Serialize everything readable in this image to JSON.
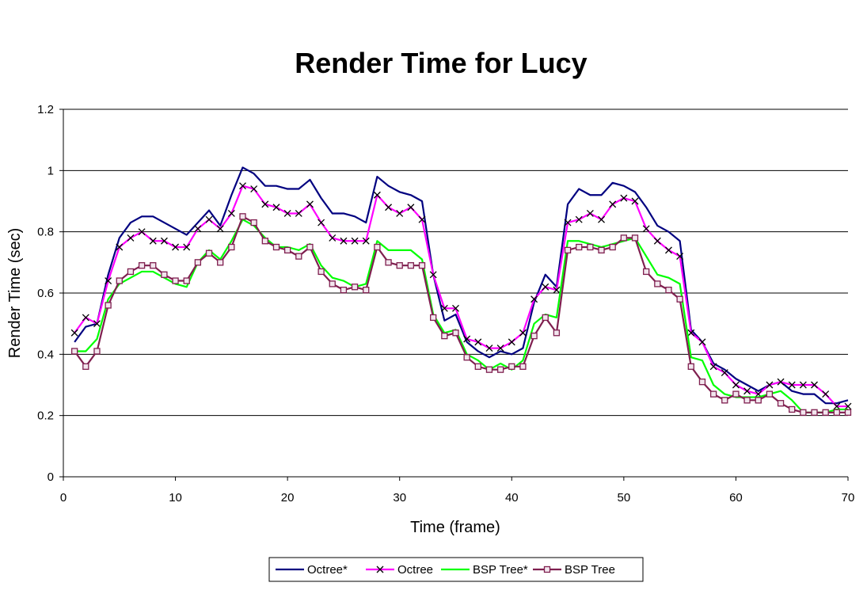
{
  "chart_data": {
    "type": "line",
    "title": "Render Time for Lucy",
    "xlabel": "Time (frame)",
    "ylabel": "Render Time (sec)",
    "xlim": [
      0,
      70
    ],
    "ylim": [
      0,
      1.2
    ],
    "xticks": [
      0,
      10,
      20,
      30,
      40,
      50,
      60,
      70
    ],
    "yticks": [
      0,
      0.2,
      0.4,
      0.6,
      0.8,
      1,
      1.2
    ],
    "ytick_labels": [
      "0",
      "0.2",
      "0.4",
      "0.6",
      "0.8",
      "1",
      "1.2"
    ],
    "grid": "horizontal",
    "legend_position": "bottom",
    "x": [
      1,
      2,
      3,
      4,
      5,
      6,
      7,
      8,
      9,
      10,
      11,
      12,
      13,
      14,
      15,
      16,
      17,
      18,
      19,
      20,
      21,
      22,
      23,
      24,
      25,
      26,
      27,
      28,
      29,
      30,
      31,
      32,
      33,
      34,
      35,
      36,
      37,
      38,
      39,
      40,
      41,
      42,
      43,
      44,
      45,
      46,
      47,
      48,
      49,
      50,
      51,
      52,
      53,
      54,
      55,
      56,
      57,
      58,
      59,
      60,
      61,
      62,
      63,
      64,
      65,
      66,
      67,
      68,
      69,
      70
    ],
    "series": [
      {
        "name": "Octree*",
        "color": "#000080",
        "marker": "none",
        "values": [
          0.44,
          0.49,
          0.5,
          0.66,
          0.78,
          0.83,
          0.85,
          0.85,
          0.83,
          0.81,
          0.79,
          0.83,
          0.87,
          0.82,
          0.92,
          1.01,
          0.99,
          0.95,
          0.95,
          0.94,
          0.94,
          0.97,
          0.91,
          0.86,
          0.86,
          0.85,
          0.83,
          0.98,
          0.95,
          0.93,
          0.92,
          0.9,
          0.66,
          0.51,
          0.53,
          0.44,
          0.41,
          0.39,
          0.41,
          0.4,
          0.42,
          0.57,
          0.66,
          0.62,
          0.89,
          0.94,
          0.92,
          0.92,
          0.96,
          0.95,
          0.93,
          0.88,
          0.82,
          0.8,
          0.77,
          0.48,
          0.44,
          0.37,
          0.35,
          0.32,
          0.3,
          0.28,
          0.3,
          0.31,
          0.28,
          0.27,
          0.27,
          0.24,
          0.24,
          0.25
        ]
      },
      {
        "name": "Octree",
        "color": "#ff00ff",
        "marker": "x",
        "values": [
          0.47,
          0.52,
          0.5,
          0.64,
          0.75,
          0.78,
          0.8,
          0.77,
          0.77,
          0.75,
          0.75,
          0.81,
          0.84,
          0.81,
          0.86,
          0.95,
          0.94,
          0.89,
          0.88,
          0.86,
          0.86,
          0.89,
          0.83,
          0.78,
          0.77,
          0.77,
          0.77,
          0.92,
          0.88,
          0.86,
          0.88,
          0.84,
          0.66,
          0.55,
          0.55,
          0.45,
          0.44,
          0.42,
          0.42,
          0.44,
          0.47,
          0.58,
          0.62,
          0.61,
          0.83,
          0.84,
          0.86,
          0.84,
          0.89,
          0.91,
          0.9,
          0.81,
          0.77,
          0.74,
          0.72,
          0.47,
          0.44,
          0.36,
          0.34,
          0.3,
          0.28,
          0.27,
          0.3,
          0.31,
          0.3,
          0.3,
          0.3,
          0.27,
          0.23,
          0.23
        ]
      },
      {
        "name": "BSP Tree*",
        "color": "#00ff00",
        "marker": "none",
        "values": [
          0.41,
          0.41,
          0.45,
          0.58,
          0.63,
          0.65,
          0.67,
          0.67,
          0.65,
          0.63,
          0.62,
          0.7,
          0.74,
          0.71,
          0.77,
          0.84,
          0.82,
          0.78,
          0.75,
          0.75,
          0.74,
          0.76,
          0.69,
          0.65,
          0.64,
          0.62,
          0.63,
          0.77,
          0.74,
          0.74,
          0.74,
          0.71,
          0.53,
          0.47,
          0.48,
          0.4,
          0.38,
          0.35,
          0.37,
          0.35,
          0.38,
          0.5,
          0.53,
          0.52,
          0.77,
          0.77,
          0.76,
          0.75,
          0.76,
          0.77,
          0.78,
          0.72,
          0.66,
          0.65,
          0.63,
          0.39,
          0.38,
          0.3,
          0.27,
          0.26,
          0.26,
          0.26,
          0.27,
          0.28,
          0.25,
          0.21,
          0.21,
          0.21,
          0.22,
          0.22
        ]
      },
      {
        "name": "BSP Tree",
        "color": "#7f1f4f",
        "marker": "square",
        "values": [
          0.41,
          0.36,
          0.41,
          0.56,
          0.64,
          0.67,
          0.69,
          0.69,
          0.66,
          0.64,
          0.64,
          0.7,
          0.73,
          0.7,
          0.75,
          0.85,
          0.83,
          0.77,
          0.75,
          0.74,
          0.72,
          0.75,
          0.67,
          0.63,
          0.61,
          0.62,
          0.61,
          0.75,
          0.7,
          0.69,
          0.69,
          0.69,
          0.52,
          0.46,
          0.47,
          0.39,
          0.36,
          0.35,
          0.35,
          0.36,
          0.36,
          0.46,
          0.52,
          0.47,
          0.74,
          0.75,
          0.75,
          0.74,
          0.75,
          0.78,
          0.78,
          0.67,
          0.63,
          0.61,
          0.58,
          0.36,
          0.31,
          0.27,
          0.25,
          0.27,
          0.25,
          0.25,
          0.27,
          0.24,
          0.22,
          0.21,
          0.21,
          0.21,
          0.21,
          0.21
        ]
      }
    ]
  }
}
